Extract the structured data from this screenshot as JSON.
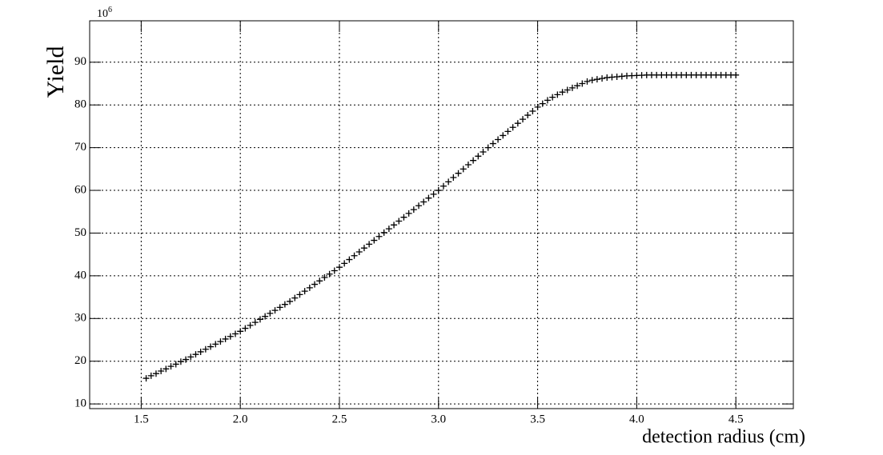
{
  "chart_data": {
    "type": "scatter",
    "y_label": "Yield",
    "x_label": "detection radius (cm)",
    "y_multiplier_base": "10",
    "y_multiplier_exponent": "6",
    "marker": "plus",
    "color": "#000000",
    "grid": true,
    "xlim": [
      1.24,
      4.79
    ],
    "ylim": [
      8.9,
      99.7
    ],
    "xticks": [
      1.5,
      {
        "value": 2,
        "label": "2.0"
      },
      2.5,
      {
        "value": 3,
        "label": "3.0"
      },
      3.5,
      {
        "value": 4,
        "label": "4.0"
      },
      4.5
    ],
    "yticks": [
      10,
      20,
      30,
      40,
      50,
      60,
      70,
      80,
      90
    ],
    "x": [
      1.525,
      1.55,
      1.575,
      1.6,
      1.625,
      1.65,
      1.675,
      1.7,
      1.725,
      1.75,
      1.775,
      1.8,
      1.825,
      1.85,
      1.875,
      1.9,
      1.925,
      1.95,
      1.975,
      2.0,
      2.025,
      2.05,
      2.075,
      2.1,
      2.125,
      2.15,
      2.175,
      2.2,
      2.225,
      2.25,
      2.275,
      2.3,
      2.325,
      2.35,
      2.375,
      2.4,
      2.425,
      2.45,
      2.475,
      2.5,
      2.525,
      2.55,
      2.575,
      2.6,
      2.625,
      2.65,
      2.675,
      2.7,
      2.725,
      2.75,
      2.775,
      2.8,
      2.825,
      2.85,
      2.875,
      2.9,
      2.925,
      2.95,
      2.975,
      3.0,
      3.025,
      3.05,
      3.075,
      3.1,
      3.125,
      3.15,
      3.175,
      3.2,
      3.225,
      3.25,
      3.275,
      3.3,
      3.325,
      3.35,
      3.375,
      3.4,
      3.425,
      3.45,
      3.475,
      3.5,
      3.525,
      3.55,
      3.575,
      3.6,
      3.625,
      3.65,
      3.675,
      3.7,
      3.725,
      3.75,
      3.775,
      3.8,
      3.825,
      3.85,
      3.875,
      3.9,
      3.925,
      3.95,
      3.975,
      4.0,
      4.025,
      4.05,
      4.075,
      4.1,
      4.125,
      4.15,
      4.175,
      4.2,
      4.225,
      4.25,
      4.275,
      4.3,
      4.325,
      4.35,
      4.375,
      4.4,
      4.425,
      4.45,
      4.475,
      4.5
    ],
    "values": [
      16,
      16.6,
      17.1,
      17.7,
      18.2,
      18.8,
      19.3,
      19.9,
      20.4,
      21,
      21.6,
      22.2,
      22.8,
      23.4,
      24,
      24.6,
      25.2,
      25.8,
      26.4,
      27,
      27.7,
      28.4,
      29.1,
      29.8,
      30.5,
      31.2,
      31.9,
      32.6,
      33.3,
      34,
      34.8,
      35.6,
      36.4,
      37.2,
      38,
      38.8,
      39.6,
      40.4,
      41.2,
      42,
      42.9,
      43.8,
      44.7,
      45.6,
      46.5,
      47.4,
      48.3,
      49.2,
      50.1,
      51,
      51.9,
      52.8,
      53.7,
      54.6,
      55.5,
      56.4,
      57.3,
      58.2,
      59.1,
      60,
      61,
      62,
      63,
      64,
      65,
      66,
      67,
      68,
      69,
      70,
      70.95,
      71.9,
      72.85,
      73.8,
      74.75,
      75.7,
      76.65,
      77.6,
      78.55,
      79.5,
      80.3,
      81.1,
      81.8,
      82.4,
      83,
      83.5,
      84,
      84.5,
      85,
      85.5,
      85.8,
      86,
      86.2,
      86.4,
      86.5,
      86.6,
      86.7,
      86.8,
      86.85,
      86.9,
      86.95,
      87,
      87,
      87,
      87,
      87,
      87,
      87,
      87,
      87,
      87,
      87,
      87,
      87,
      87,
      87,
      87,
      87,
      87,
      87
    ]
  }
}
